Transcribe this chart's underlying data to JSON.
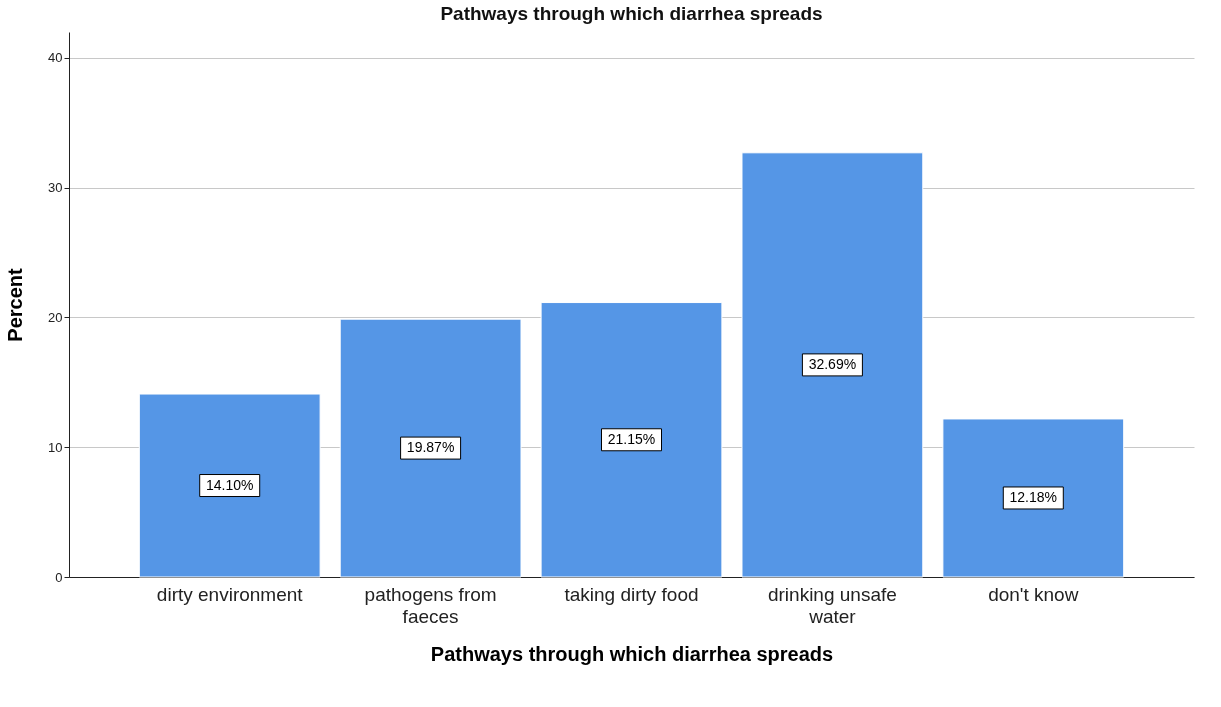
{
  "chart_data": {
    "type": "bar",
    "title": "Pathways through which diarrhea spreads",
    "xlabel": "Pathways through which diarrhea spreads",
    "ylabel": "Percent",
    "categories": [
      "dirty environment",
      "pathogens from faeces",
      "taking dirty food",
      "drinking unsafe water",
      "don't know"
    ],
    "values": [
      14.1,
      19.87,
      21.15,
      32.69,
      12.18
    ],
    "value_labels": [
      "14.10%",
      "19.87%",
      "21.15%",
      "32.69%",
      "12.18%"
    ],
    "color": "#5596e6",
    "ylim": [
      0,
      42
    ],
    "yticks": [
      0,
      10,
      20,
      30,
      40
    ],
    "grid": "y"
  }
}
